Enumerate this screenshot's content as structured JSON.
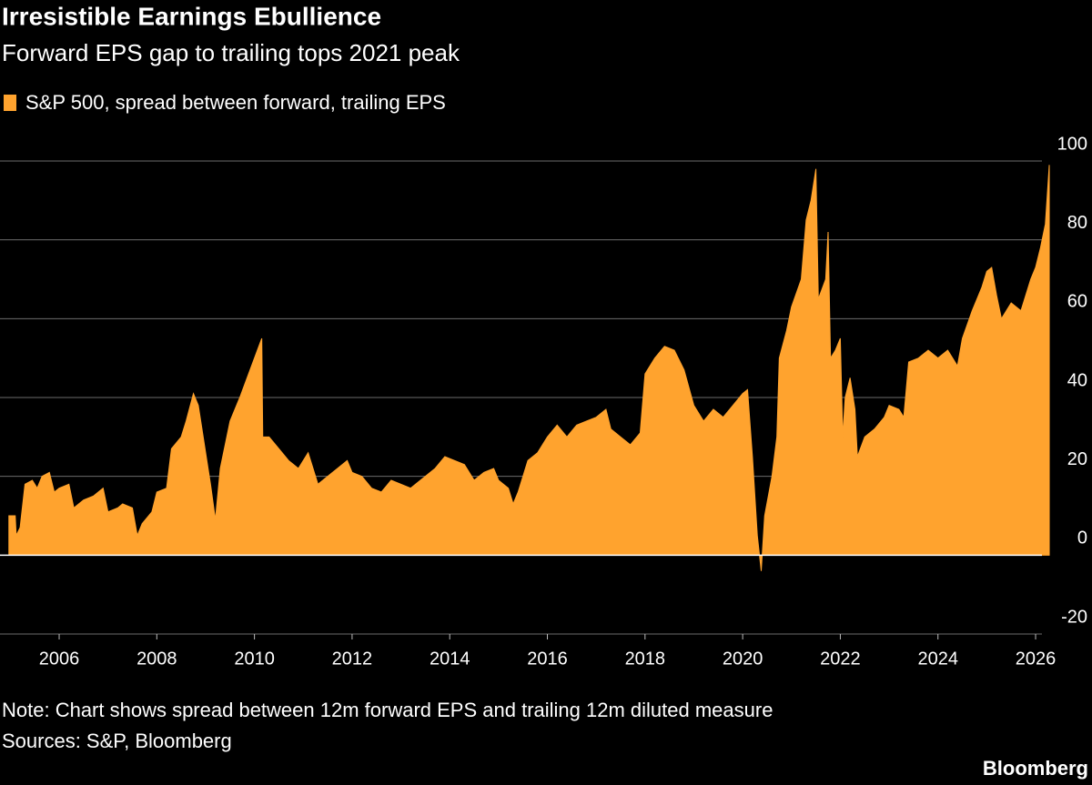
{
  "chart_data": {
    "type": "area",
    "title": "Irresistible Earnings Ebullience",
    "subtitle": "Forward EPS gap to trailing tops 2021 peak",
    "note": "Note: Chart shows spread between 12m forward EPS and trailing 12m diluted measure",
    "source": "Sources: S&P, Bloomberg",
    "credit": "Bloomberg",
    "x": [
      2004.97,
      2005.1,
      2005.12,
      2005.2,
      2005.3,
      2005.45,
      2005.55,
      2005.65,
      2005.8,
      2005.9,
      2006.0,
      2006.2,
      2006.3,
      2006.5,
      2006.7,
      2006.9,
      2007.0,
      2007.2,
      2007.3,
      2007.5,
      2007.6,
      2007.7,
      2007.9,
      2008.0,
      2008.2,
      2008.3,
      2008.5,
      2008.6,
      2008.75,
      2008.85,
      2008.95,
      2009.1,
      2009.2,
      2009.3,
      2009.5,
      2009.7,
      2009.85,
      2010.0,
      2010.15,
      2010.17,
      2010.3,
      2010.5,
      2010.7,
      2010.9,
      2011.1,
      2011.3,
      2011.5,
      2011.7,
      2011.9,
      2012.0,
      2012.2,
      2012.4,
      2012.6,
      2012.8,
      2013.0,
      2013.2,
      2013.5,
      2013.7,
      2013.9,
      2014.1,
      2014.3,
      2014.5,
      2014.7,
      2014.9,
      2015.0,
      2015.2,
      2015.3,
      2015.4,
      2015.6,
      2015.8,
      2016.0,
      2016.2,
      2016.4,
      2016.6,
      2016.8,
      2017.0,
      2017.2,
      2017.3,
      2017.5,
      2017.7,
      2017.9,
      2018.0,
      2018.2,
      2018.4,
      2018.6,
      2018.8,
      2019.0,
      2019.2,
      2019.4,
      2019.6,
      2019.8,
      2020.0,
      2020.1,
      2020.2,
      2020.3,
      2020.38,
      2020.45,
      2020.6,
      2020.7,
      2020.75,
      2020.9,
      2021.0,
      2021.2,
      2021.3,
      2021.4,
      2021.5,
      2021.55,
      2021.7,
      2021.75,
      2021.8,
      2021.9,
      2022.0,
      2022.05,
      2022.1,
      2022.2,
      2022.3,
      2022.35,
      2022.5,
      2022.7,
      2022.9,
      2023.0,
      2023.2,
      2023.3,
      2023.4,
      2023.6,
      2023.8,
      2024.0,
      2024.2,
      2024.4,
      2024.5,
      2024.7,
      2024.9,
      2025.0,
      2025.1,
      2025.2,
      2025.3,
      2025.5,
      2025.7,
      2025.9,
      2026.0,
      2026.1,
      2026.2,
      2026.28
    ],
    "series": [
      {
        "name": "S&P 500, spread between forward, trailing EPS",
        "color": "#ffa32e",
        "values": [
          10,
          10,
          5,
          7,
          18,
          19,
          17,
          20,
          21,
          16,
          17,
          18,
          12,
          14,
          15,
          17,
          11,
          12,
          13,
          12,
          5,
          8,
          11,
          16,
          17,
          27,
          30,
          34,
          41,
          38,
          30,
          18,
          9,
          22,
          34,
          40,
          45,
          50,
          55,
          30,
          30,
          27,
          24,
          22,
          26,
          18,
          20,
          22,
          24,
          21,
          20,
          17,
          16,
          19,
          18,
          17,
          20,
          22,
          25,
          24,
          23,
          19,
          21,
          22,
          19,
          17,
          13,
          16,
          24,
          26,
          30,
          33,
          30,
          33,
          34,
          35,
          37,
          32,
          30,
          28,
          31,
          46,
          50,
          53,
          52,
          47,
          38,
          34,
          37,
          35,
          38,
          41,
          42,
          25,
          5,
          -4,
          10,
          20,
          30,
          50,
          57,
          63,
          70,
          85,
          90,
          98,
          65,
          70,
          82,
          50,
          52,
          55,
          30,
          40,
          45,
          37,
          25,
          30,
          32,
          35,
          38,
          37,
          35,
          49,
          50,
          52,
          50,
          52,
          48,
          55,
          62,
          68,
          72,
          73,
          66,
          60,
          64,
          62,
          70,
          73,
          78,
          84,
          99
        ]
      }
    ],
    "xlim": [
      2004.9,
      2026.35
    ],
    "xticks": [
      2006,
      2008,
      2010,
      2012,
      2014,
      2016,
      2018,
      2020,
      2022,
      2024,
      2026
    ],
    "ylim": [
      -20,
      100
    ],
    "yticks": [
      -20,
      0,
      20,
      40,
      60,
      80,
      100
    ],
    "grid": true
  }
}
